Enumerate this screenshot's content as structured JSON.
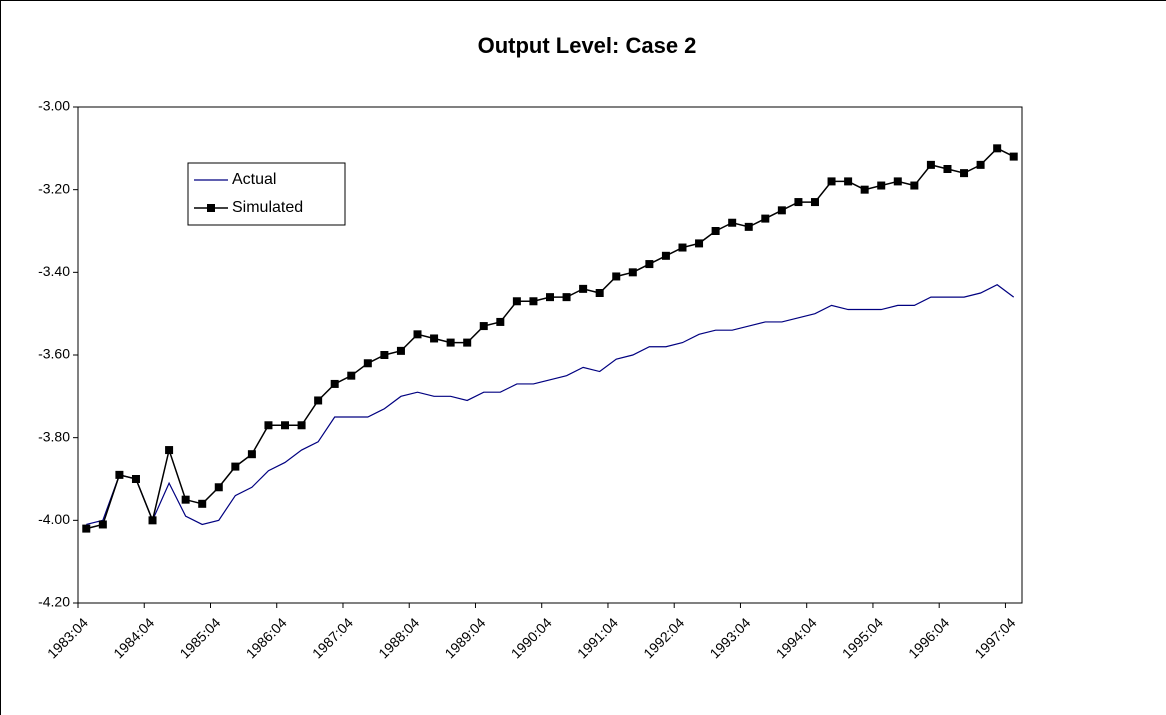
{
  "chart_data": {
    "type": "line",
    "title": "Output Level: Case 2",
    "categories": [
      "1983:04",
      null,
      null,
      null,
      "1984:04",
      null,
      null,
      null,
      "1985:04",
      null,
      null,
      null,
      "1986:04",
      null,
      null,
      null,
      "1987:04",
      null,
      null,
      null,
      "1988:04",
      null,
      null,
      null,
      "1989:04",
      null,
      null,
      null,
      "1990:04",
      null,
      null,
      null,
      "1991:04",
      null,
      null,
      null,
      "1992:04",
      null,
      null,
      null,
      "1993:04",
      null,
      null,
      null,
      "1994:04",
      null,
      null,
      null,
      "1995:04",
      null,
      null,
      null,
      "1996:04",
      null,
      null,
      null,
      "1997:04"
    ],
    "series": [
      {
        "name": "Actual",
        "color": "#000080",
        "marker": false,
        "values": [
          -4.01,
          -4.0,
          -3.89,
          -3.9,
          -4.0,
          -3.91,
          -3.99,
          -4.01,
          -4.0,
          -3.94,
          -3.92,
          -3.88,
          -3.86,
          -3.83,
          -3.81,
          -3.75,
          -3.75,
          -3.75,
          -3.73,
          -3.7,
          -3.69,
          -3.7,
          -3.7,
          -3.71,
          -3.69,
          -3.69,
          -3.67,
          -3.67,
          -3.66,
          -3.65,
          -3.63,
          -3.64,
          -3.61,
          -3.6,
          -3.58,
          -3.58,
          -3.57,
          -3.55,
          -3.54,
          -3.54,
          -3.53,
          -3.52,
          -3.52,
          -3.51,
          -3.5,
          -3.48,
          -3.49,
          -3.49,
          -3.49,
          -3.48,
          -3.48,
          -3.46,
          -3.46,
          -3.46,
          -3.45,
          -3.43,
          -3.46
        ]
      },
      {
        "name": "Simulated",
        "color": "#000000",
        "marker": true,
        "values": [
          -4.02,
          -4.01,
          -3.89,
          -3.9,
          -4.0,
          -3.83,
          -3.95,
          -3.96,
          -3.92,
          -3.87,
          -3.84,
          -3.77,
          -3.77,
          -3.77,
          -3.71,
          -3.67,
          -3.65,
          -3.62,
          -3.6,
          -3.59,
          -3.55,
          -3.56,
          -3.57,
          -3.57,
          -3.53,
          -3.52,
          -3.47,
          -3.47,
          -3.46,
          -3.46,
          -3.44,
          -3.45,
          -3.41,
          -3.4,
          -3.38,
          -3.36,
          -3.34,
          -3.33,
          -3.3,
          -3.28,
          -3.29,
          -3.27,
          -3.25,
          -3.23,
          -3.23,
          -3.18,
          -3.18,
          -3.2,
          -3.19,
          -3.18,
          -3.19,
          -3.14,
          -3.15,
          -3.16,
          -3.14,
          -3.1,
          -3.12
        ]
      }
    ],
    "ylim": [
      -4.2,
      -3.0
    ],
    "yticks": [
      {
        "value": -3.0,
        "label": "-3.00"
      },
      {
        "value": -3.2,
        "label": "-3.20"
      },
      {
        "value": -3.4,
        "label": "-3.40"
      },
      {
        "value": -3.6,
        "label": "-3.60"
      },
      {
        "value": -3.8,
        "label": "-3.80"
      },
      {
        "value": -4.0,
        "label": "-4.00"
      },
      {
        "value": -4.2,
        "label": "-4.20"
      }
    ],
    "grid": false,
    "legend": "upper left"
  }
}
